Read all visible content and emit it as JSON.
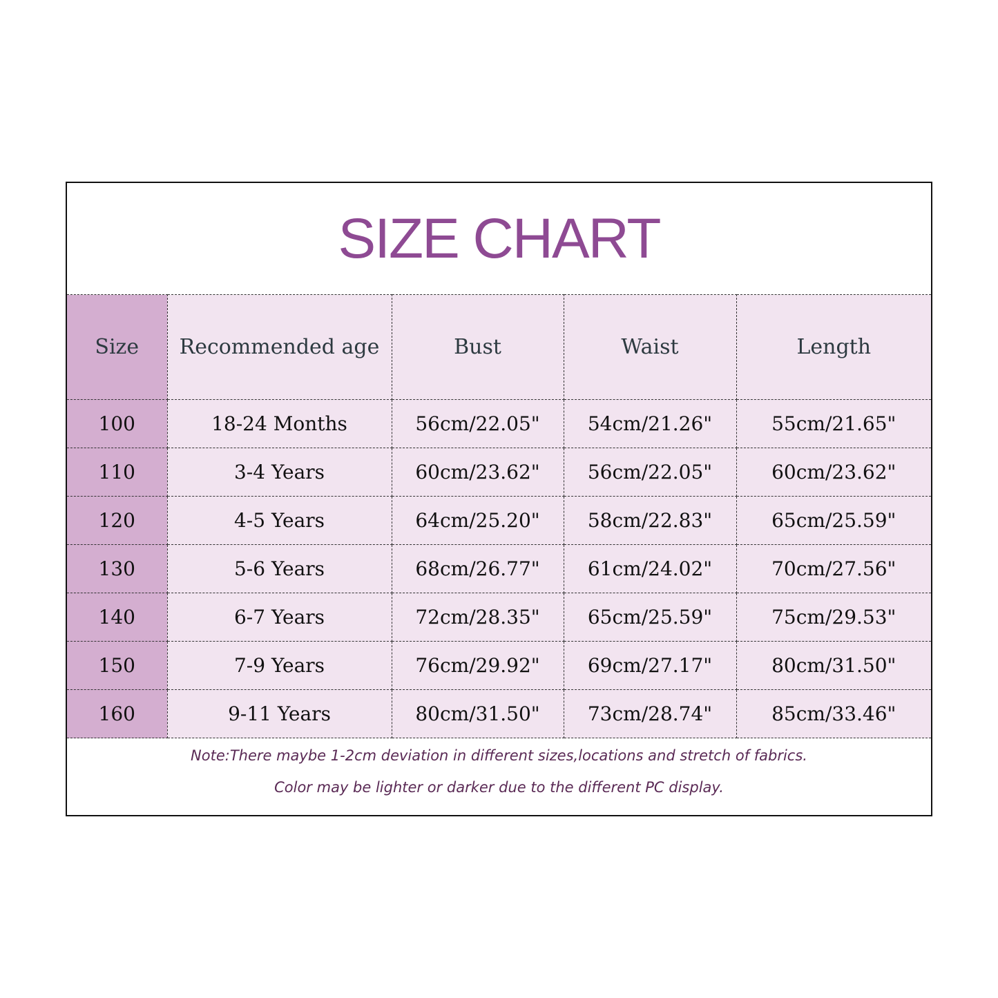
{
  "title": "SIZE CHART",
  "colors": {
    "title": "#8e4a93",
    "size_column": "#d4aed0",
    "cell_background": "#f2e4f0"
  },
  "table": {
    "headers": [
      "Size",
      "Recommended age",
      "Bust",
      "Waist",
      "Length"
    ],
    "rows": [
      [
        "100",
        "18-24 Months",
        "56cm/22.05\"",
        "54cm/21.26\"",
        "55cm/21.65\""
      ],
      [
        "110",
        "3-4 Years",
        "60cm/23.62\"",
        "56cm/22.05\"",
        "60cm/23.62\""
      ],
      [
        "120",
        "4-5 Years",
        "64cm/25.20\"",
        "58cm/22.83\"",
        "65cm/25.59\""
      ],
      [
        "130",
        "5-6 Years",
        "68cm/26.77\"",
        "61cm/24.02\"",
        "70cm/27.56\""
      ],
      [
        "140",
        "6-7 Years",
        "72cm/28.35\"",
        "65cm/25.59\"",
        "75cm/29.53\""
      ],
      [
        "150",
        "7-9 Years",
        "76cm/29.92\"",
        "69cm/27.17\"",
        "80cm/31.50\""
      ],
      [
        "160",
        "9-11 Years",
        "80cm/31.50\"",
        "73cm/28.74\"",
        "85cm/33.46\""
      ]
    ]
  },
  "notes": [
    "Note:There maybe 1-2cm deviation in different sizes,locations and stretch of fabrics.",
    "Color may be lighter or darker due to the different PC display."
  ]
}
